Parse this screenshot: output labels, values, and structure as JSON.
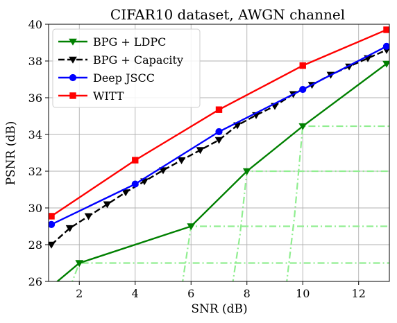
{
  "chart_data": {
    "type": "line",
    "title": "CIFAR10 dataset, AWGN channel",
    "xlabel": "SNR (dB)",
    "ylabel": "PSNR (dB)",
    "xlim": [
      0.9,
      13.1
    ],
    "ylim": [
      26,
      40
    ],
    "xticks": [
      2,
      4,
      6,
      8,
      10,
      12
    ],
    "yticks": [
      26,
      28,
      30,
      32,
      34,
      36,
      38,
      40
    ],
    "grid": true,
    "legend_position": "top-left",
    "series": [
      {
        "name": "BPG + LDPC",
        "color": "#008000",
        "marker": "triangle-down",
        "dash": "solid",
        "x": [
          0.9,
          2,
          6,
          8,
          10,
          13
        ],
        "y": [
          25.6,
          27.0,
          29.0,
          32.0,
          34.45,
          37.85
        ]
      },
      {
        "name": "BPG + Capacity",
        "color": "#000000",
        "marker": "triangle-down",
        "dash": "dashed",
        "x": [
          1,
          1.66,
          2.33,
          3,
          3.66,
          4.33,
          5,
          5.66,
          6.33,
          7,
          7.66,
          8.33,
          9,
          9.66,
          10.33,
          11,
          11.66,
          12.33,
          13
        ],
        "y": [
          28.0,
          28.9,
          29.55,
          30.2,
          30.85,
          31.45,
          32.05,
          32.6,
          33.15,
          33.7,
          34.5,
          35.05,
          35.55,
          36.2,
          36.7,
          37.25,
          37.7,
          38.15,
          38.6
        ]
      },
      {
        "name": "Deep JSCC",
        "color": "#0000ff",
        "marker": "circle",
        "dash": "solid",
        "x": [
          1,
          4,
          7,
          10,
          13
        ],
        "y": [
          29.1,
          31.3,
          34.15,
          36.45,
          38.8
        ]
      },
      {
        "name": "WITT",
        "color": "#ff0000",
        "marker": "square",
        "dash": "solid",
        "x": [
          1,
          4,
          7,
          10,
          13
        ],
        "y": [
          29.55,
          32.6,
          35.35,
          37.75,
          39.7
        ]
      }
    ],
    "cliff_curves": {
      "color": "#90ee90",
      "dash": "dashdot",
      "lines": [
        {
          "x": [
            1.5,
            1.85,
            2,
            13.1
          ],
          "y": [
            25.0,
            26.4,
            27.0,
            27.0
          ]
        },
        {
          "x": [
            5.6,
            5.85,
            6,
            13.1
          ],
          "y": [
            25.0,
            27.5,
            29.0,
            29.0
          ]
        },
        {
          "x": [
            7.4,
            7.75,
            8,
            13.1
          ],
          "y": [
            25.0,
            28.5,
            32.0,
            32.0
          ]
        },
        {
          "x": [
            9.35,
            9.7,
            10,
            13.1
          ],
          "y": [
            25.0,
            29.5,
            34.45,
            34.45
          ]
        }
      ]
    }
  }
}
